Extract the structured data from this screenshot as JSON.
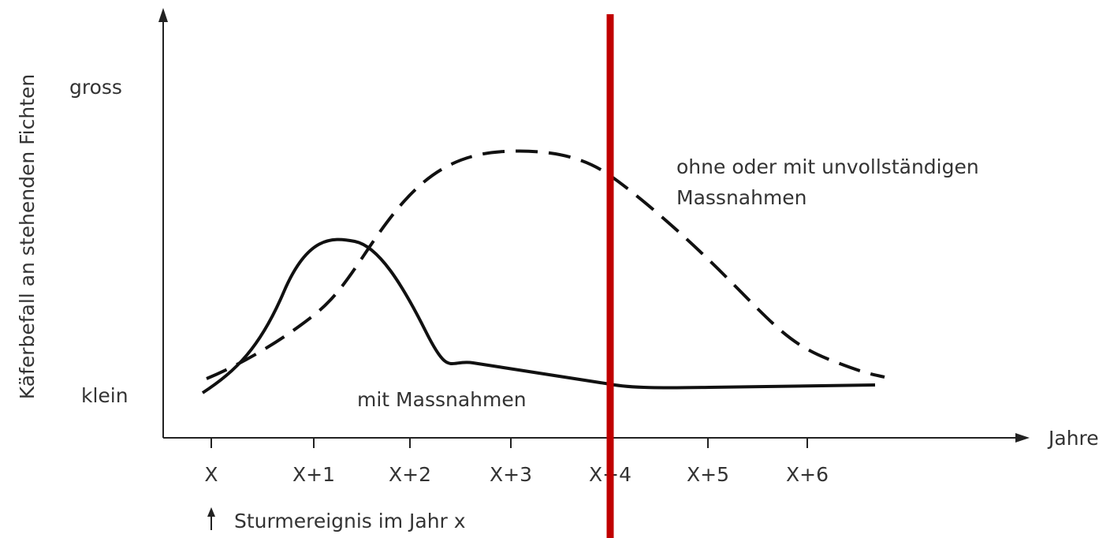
{
  "y_axis": {
    "label": "Käferbefall an stehenden Fichten",
    "high": "gross",
    "low": "klein"
  },
  "x_axis": {
    "label": "Jahre",
    "ticks": [
      "X",
      "X+1",
      "X+2",
      "X+3",
      "X+4",
      "X+5",
      "X+6"
    ]
  },
  "curves": [
    {
      "label": [
        "ohne oder mit unvollständigen",
        "Massnahmen"
      ]
    },
    {
      "label": "mit Massnahmen"
    }
  ],
  "note": "Sturmereignis im Jahr x"
}
